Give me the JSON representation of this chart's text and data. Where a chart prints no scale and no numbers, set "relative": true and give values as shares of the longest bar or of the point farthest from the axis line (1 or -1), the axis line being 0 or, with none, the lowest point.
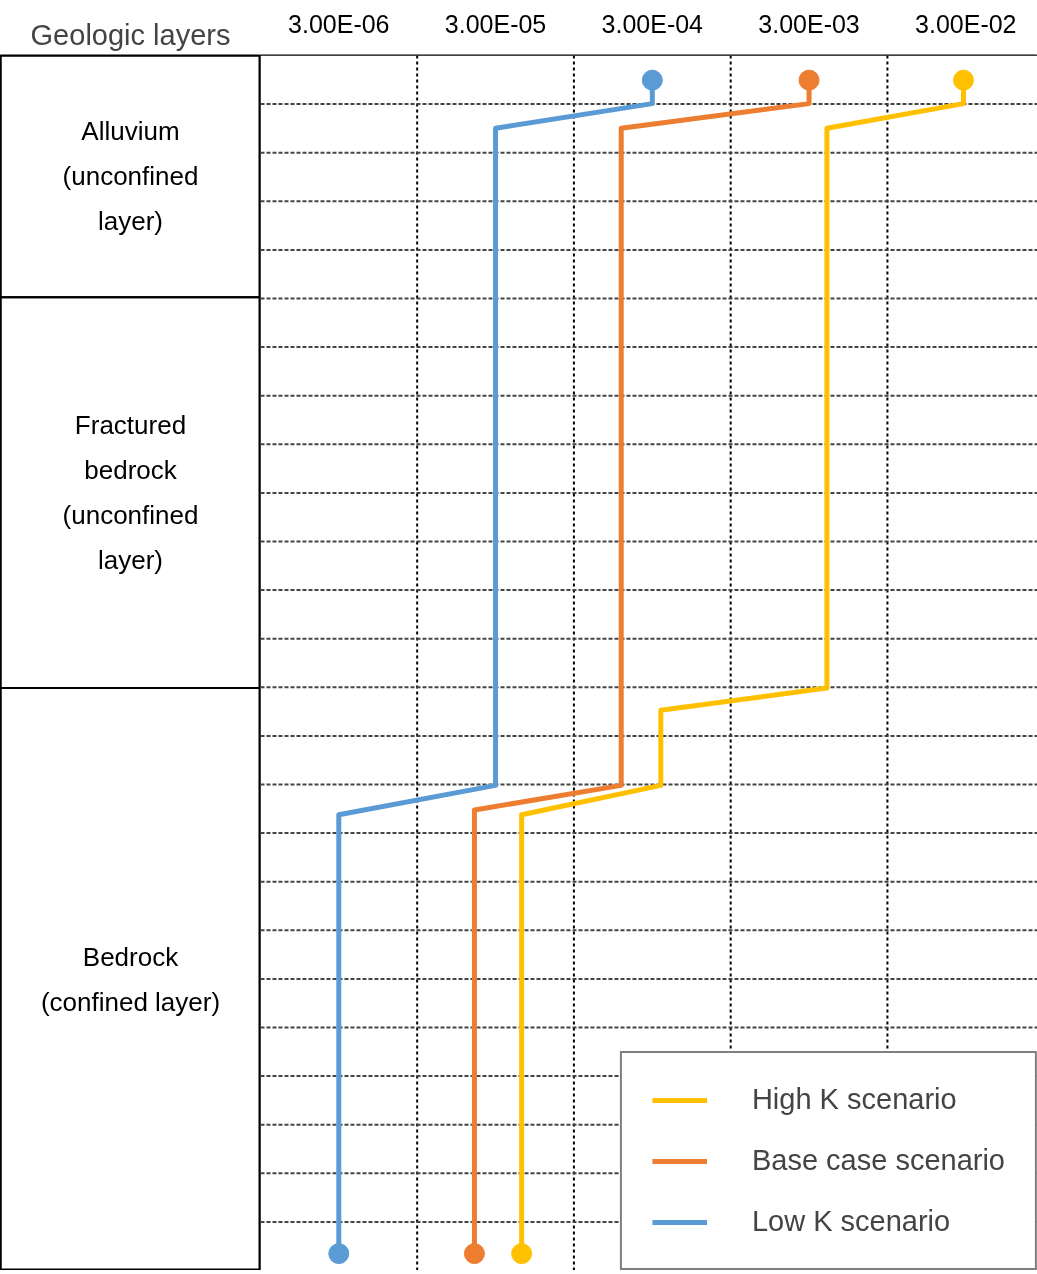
{
  "chart_data": {
    "type": "line",
    "relative": true,
    "log": "x",
    "ylabel": "Geologic layers",
    "xlim": [
      9.5e-07,
      0.086
    ],
    "xticks": [
      {
        "value": 3e-06,
        "label": "3.00E-06"
      },
      {
        "value": 3e-05,
        "label": "3.00E-05"
      },
      {
        "value": 0.0003,
        "label": "3.00E-04"
      },
      {
        "value": 0.003,
        "label": "3.00E-03"
      },
      {
        "value": 0.03,
        "label": "3.00E-02"
      }
    ],
    "grid": true,
    "legend": "bottom right",
    "line_style": "solid",
    "series": [
      {
        "name": "High K scenario",
        "color": "#ffc000",
        "x": [
          0.029,
          0.029,
          0.0039,
          0.0039,
          0.00034,
          0.00034,
          4.4e-05,
          4.4e-05
        ],
        "values": [
          1.0,
          0.98,
          0.959,
          0.482,
          0.463,
          0.399,
          0.374,
          0.0
        ]
      },
      {
        "name": "Base case scenario",
        "color": "#ed7d31",
        "x": [
          0.003,
          0.003,
          0.00019,
          0.00019,
          2.2e-05,
          2.2e-05
        ],
        "values": [
          1.0,
          0.98,
          0.959,
          0.399,
          0.378,
          0.0
        ]
      },
      {
        "name": "Low K scenario",
        "color": "#5b9bd5",
        "x": [
          0.0003,
          0.0003,
          3e-05,
          3e-05,
          3e-06,
          3e-06
        ],
        "values": [
          1.0,
          0.98,
          0.959,
          0.399,
          0.374,
          0.0
        ]
      },
      {
        "type": "scatter",
        "marker": "circle",
        "color": "#ffc000",
        "x": [
          0.029,
          4.4e-05
        ],
        "values": [
          1.0,
          0.0
        ]
      },
      {
        "type": "scatter",
        "marker": "circle",
        "color": "#ed7d31",
        "x": [
          0.003,
          2.2e-05
        ],
        "values": [
          1.0,
          0.0
        ]
      },
      {
        "type": "scatter",
        "marker": "circle",
        "color": "#5b9bd5",
        "x": [
          0.0003,
          3e-06
        ],
        "values": [
          1.0,
          0.0
        ]
      }
    ],
    "bands": [
      {
        "axis": "y",
        "from": 0.815,
        "to": 1.021,
        "color": "#ffffff",
        "label": "Alluvium\n(unconfined\nlayer)"
      },
      {
        "axis": "y",
        "from": 0.482,
        "to": 0.815,
        "color": "#ffffff",
        "label": "Fractured\nbedrock\n(unconfined\nlayer)"
      },
      {
        "axis": "y",
        "from": -0.0144,
        "to": 0.482,
        "color": "#ffffff",
        "label": "Bedrock\n(confined layer)"
      }
    ]
  }
}
